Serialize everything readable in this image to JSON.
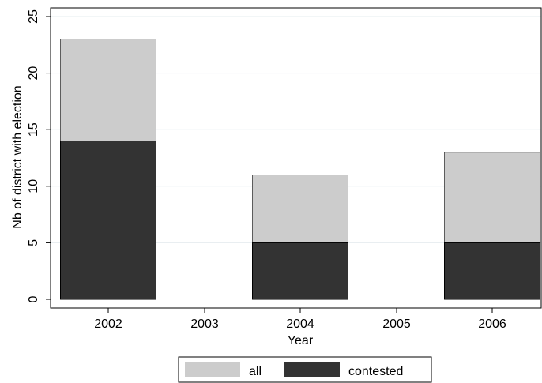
{
  "chart_data": {
    "type": "bar",
    "stacked": false,
    "overlay": true,
    "categories": [
      "2002",
      "2003",
      "2004",
      "2005",
      "2006"
    ],
    "series": [
      {
        "name": "all",
        "values": [
          23,
          0,
          11,
          0,
          13
        ],
        "color": "#cccccc"
      },
      {
        "name": "contested",
        "values": [
          14,
          0,
          5,
          0,
          5
        ],
        "color": "#333333"
      }
    ],
    "ylabel": "Nb of district with election",
    "xlabel": "Year",
    "ylim": [
      0,
      25
    ],
    "yticks": [
      "0",
      "5",
      "10",
      "15",
      "20",
      "25"
    ],
    "grid": true,
    "legend_position": "bottom"
  }
}
